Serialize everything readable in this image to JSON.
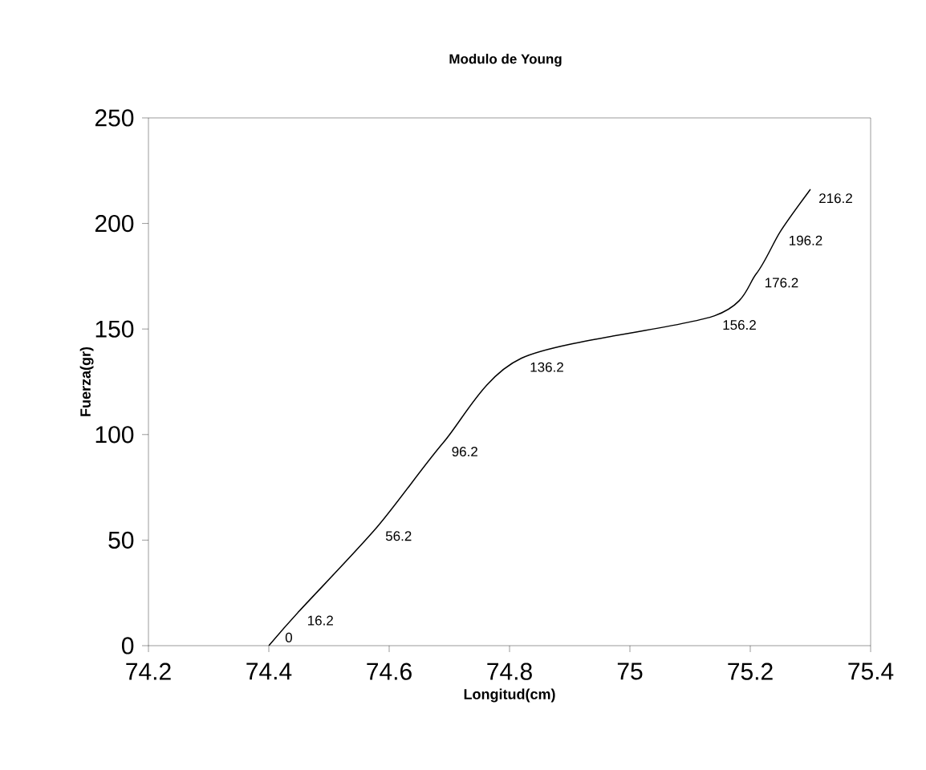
{
  "chart_data": {
    "type": "line",
    "title": "Modulo de Young",
    "xlabel": "Longitud(cm)",
    "ylabel": "Fuerza(gr)",
    "x": [
      74.4,
      74.45,
      74.58,
      74.69,
      74.82,
      75.14,
      75.21,
      75.25,
      75.3
    ],
    "values": [
      0,
      16.2,
      56.2,
      96.2,
      136.2,
      156.2,
      176.2,
      196.2,
      216.2
    ],
    "color": "#000000",
    "data_labels": true,
    "marker": "none",
    "line_style": "solid",
    "xlim": [
      74.2,
      75.4
    ],
    "xticks": [
      74.2,
      74.4,
      74.6,
      74.8,
      75,
      75.2,
      75.4
    ],
    "ylim": [
      0,
      250
    ],
    "yticks": [
      0,
      50,
      100,
      150,
      200,
      250
    ]
  }
}
